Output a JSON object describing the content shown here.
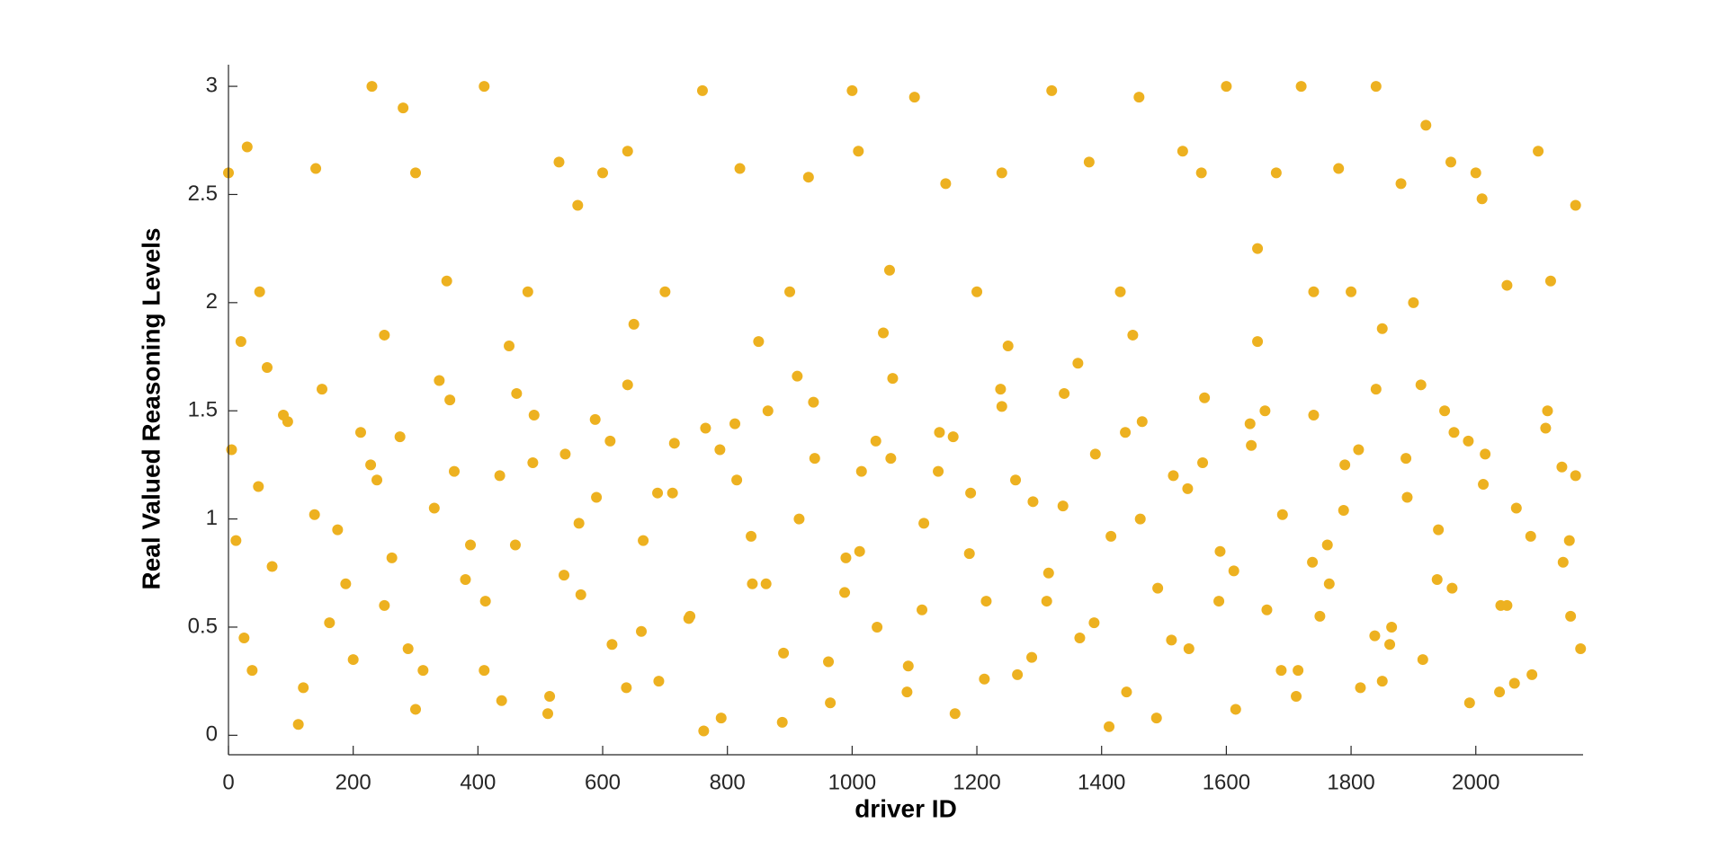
{
  "chart_data": {
    "type": "scatter",
    "xlabel": "driver ID",
    "ylabel": "Real Valued Reasoning Levels",
    "color": "#EDB120",
    "xlim": [
      0,
      2172
    ],
    "ylim": [
      -0.09,
      3.1
    ],
    "xticks": [
      0,
      200,
      400,
      600,
      800,
      1000,
      1200,
      1400,
      1600,
      1800,
      2000
    ],
    "yticks": [
      0,
      0.5,
      1,
      1.5,
      2,
      2.5,
      3
    ],
    "x": [
      5,
      25,
      48,
      70,
      95,
      120,
      150,
      175,
      200,
      228,
      250,
      275,
      300,
      330,
      355,
      380,
      410,
      435,
      460,
      490,
      515,
      540,
      565,
      590,
      615,
      640,
      665,
      690,
      715,
      740,
      765,
      790,
      815,
      840,
      865,
      890,
      915,
      940,
      965,
      990,
      1015,
      1040,
      1065,
      1090,
      1115,
      1140,
      1165,
      1190,
      1215,
      1240,
      1265,
      1290,
      1315,
      1340,
      1365,
      1390,
      1415,
      1440,
      1465,
      1490,
      1515,
      1540,
      1565,
      1590,
      1615,
      1640,
      1665,
      1690,
      1715,
      1740,
      1765,
      1790,
      1815,
      1840,
      1865,
      1890,
      1915,
      1940,
      1965,
      1990,
      2015,
      2040,
      2065,
      2090,
      2115,
      2140,
      2160,
      12,
      62,
      112,
      162,
      212,
      262,
      312,
      362,
      412,
      462,
      512,
      562,
      612,
      662,
      712,
      762,
      812,
      862,
      912,
      962,
      1012,
      1062,
      1112,
      1162,
      1212,
      1262,
      1312,
      1362,
      1412,
      1462,
      1512,
      1562,
      1612,
      1662,
      1712,
      1762,
      1812,
      1862,
      1912,
      1962,
      2012,
      2062,
      2112,
      2152,
      38,
      88,
      138,
      188,
      238,
      288,
      338,
      388,
      438,
      488,
      538,
      588,
      638,
      688,
      738,
      788,
      838,
      888,
      938,
      988,
      1038,
      1088,
      1138,
      1188,
      1238,
      1288,
      1338,
      1388,
      1438,
      1488,
      1538,
      1588,
      1638,
      1688,
      1738,
      1788,
      1838,
      1888,
      1938,
      1988,
      2038,
      2088,
      2138,
      2168,
      1750,
      1850,
      1950,
      2050,
      2150,
      0,
      30,
      140,
      230,
      280,
      410,
      530,
      600,
      640,
      760,
      820,
      930,
      1000,
      1100,
      1150,
      1240,
      1320,
      1380,
      1460,
      1530,
      1600,
      1680,
      1720,
      1780,
      1840,
      1880,
      1920,
      1960,
      2000,
      2100,
      2160,
      50,
      350,
      480,
      700,
      900,
      1060,
      1200,
      1430,
      1740,
      1800,
      1900,
      2050,
      2120,
      300,
      560,
      1010,
      1560,
      1650,
      2010,
      20,
      250,
      450,
      650,
      850,
      1050,
      1250,
      1450,
      1650,
      1850
    ],
    "y": [
      1.32,
      0.45,
      1.15,
      0.78,
      1.45,
      0.22,
      1.6,
      0.95,
      0.35,
      1.25,
      0.6,
      1.38,
      0.12,
      1.05,
      1.55,
      0.72,
      0.3,
      1.2,
      0.88,
      1.48,
      0.18,
      1.3,
      0.65,
      1.1,
      0.42,
      1.62,
      0.9,
      0.25,
      1.35,
      0.55,
      1.42,
      0.08,
      1.18,
      0.7,
      1.5,
      0.38,
      1.0,
      1.28,
      0.15,
      0.82,
      1.22,
      0.5,
      1.65,
      0.32,
      0.98,
      1.4,
      0.1,
      1.12,
      0.62,
      1.52,
      0.28,
      1.08,
      0.75,
      1.58,
      0.45,
      1.3,
      0.92,
      0.2,
      1.45,
      0.68,
      1.2,
      0.4,
      1.56,
      0.85,
      0.12,
      1.34,
      0.58,
      1.02,
      0.3,
      1.48,
      0.7,
      1.25,
      0.22,
      1.6,
      0.5,
      1.1,
      0.35,
      0.95,
      1.4,
      0.15,
      1.3,
      0.6,
      1.05,
      0.28,
      1.5,
      0.8,
      1.2,
      0.9,
      1.7,
      0.05,
      0.52,
      1.4,
      0.82,
      0.3,
      1.22,
      0.62,
      1.58,
      0.1,
      0.98,
      1.36,
      0.48,
      1.12,
      0.02,
      1.44,
      0.7,
      1.66,
      0.34,
      0.85,
      1.28,
      0.58,
      1.38,
      0.26,
      1.18,
      0.62,
      1.72,
      0.04,
      1.0,
      0.44,
      1.26,
      0.76,
      1.5,
      0.18,
      0.88,
      1.32,
      0.42,
      1.62,
      0.68,
      1.16,
      0.24,
      1.42,
      0.55,
      0.3,
      1.48,
      1.02,
      0.7,
      1.18,
      0.4,
      1.64,
      0.88,
      0.16,
      1.26,
      0.74,
      1.46,
      0.22,
      1.12,
      0.54,
      1.32,
      0.92,
      0.06,
      1.54,
      0.66,
      1.36,
      0.2,
      1.22,
      0.84,
      1.6,
      0.36,
      1.06,
      0.52,
      1.4,
      0.08,
      1.14,
      0.62,
      1.44,
      0.3,
      0.8,
      1.04,
      0.46,
      1.28,
      0.72,
      1.36,
      0.2,
      0.92,
      1.24,
      0.4,
      0.55,
      0.25,
      1.5,
      0.6,
      0.9,
      2.6,
      2.72,
      2.62,
      3.0,
      2.9,
      3.0,
      2.65,
      2.6,
      2.7,
      2.98,
      2.62,
      2.58,
      2.98,
      2.95,
      2.55,
      2.6,
      2.98,
      2.65,
      2.95,
      2.7,
      3.0,
      2.6,
      3.0,
      2.62,
      3.0,
      2.55,
      2.82,
      2.65,
      2.6,
      2.7,
      2.45,
      2.05,
      2.1,
      2.05,
      2.05,
      2.05,
      2.15,
      2.05,
      2.05,
      2.05,
      2.05,
      2.0,
      2.08,
      2.1,
      2.6,
      2.45,
      2.7,
      2.6,
      2.25,
      2.48,
      1.82,
      1.85,
      1.8,
      1.9,
      1.82,
      1.86,
      1.8,
      1.85,
      1.82,
      1.88
    ]
  }
}
